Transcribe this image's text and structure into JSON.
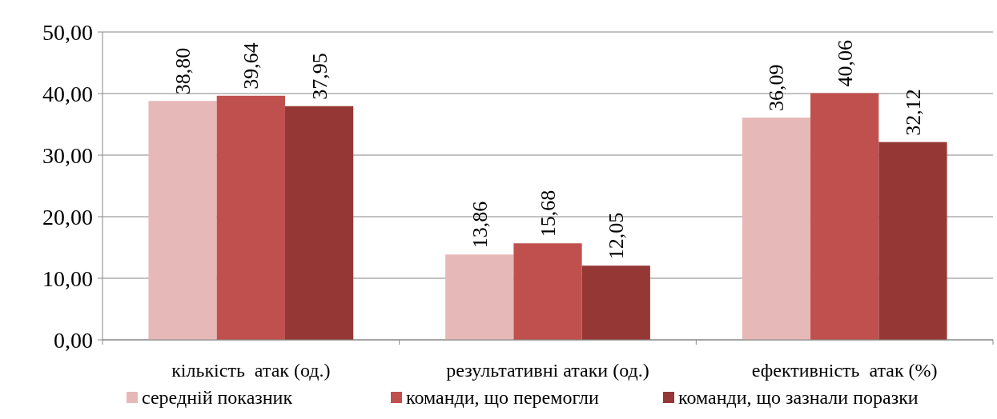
{
  "chart_data": {
    "type": "bar",
    "categories": [
      "кількість  атак (од.)",
      "результативні атаки (од.)",
      "ефективність  атак (%)"
    ],
    "series": [
      {
        "name": "середній показник",
        "color": "#e6b9b8",
        "values": [
          38.8,
          13.86,
          36.09
        ],
        "value_labels": [
          "38,80",
          "13,86",
          "36,09"
        ]
      },
      {
        "name": "команди, що перемогли",
        "color": "#c0504d",
        "values": [
          39.64,
          15.68,
          40.06
        ],
        "value_labels": [
          "39,64",
          "15,68",
          "40,06"
        ]
      },
      {
        "name": "команди, що зазнали поразки",
        "color": "#953735",
        "values": [
          37.95,
          12.05,
          32.12
        ],
        "value_labels": [
          "37,95",
          "12,05",
          "32,12"
        ]
      }
    ],
    "ylim": [
      0,
      50
    ],
    "yticks": [
      {
        "value": 0,
        "label": "0,00"
      },
      {
        "value": 10,
        "label": "10,00"
      },
      {
        "value": 20,
        "label": "20,00"
      },
      {
        "value": 30,
        "label": "30,00"
      },
      {
        "value": 40,
        "label": "40,00"
      },
      {
        "value": 50,
        "label": "50,00"
      }
    ],
    "grid": "y",
    "legend": "bottom"
  }
}
